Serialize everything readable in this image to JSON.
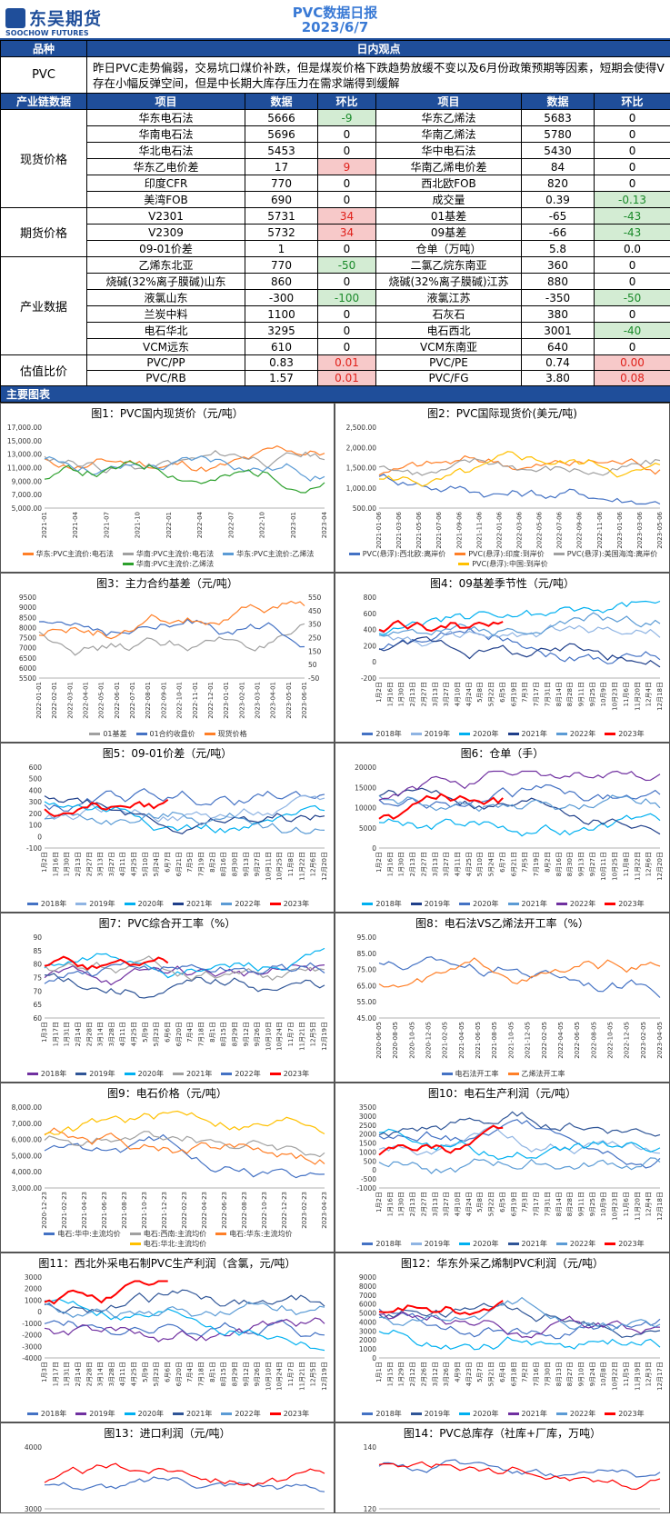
{
  "header": {
    "logo_cn": "东吴期货",
    "logo_en": "SOOCHOW FUTURES",
    "title": "PVC数据日报",
    "date": "2023/6/7"
  },
  "table": {
    "col_variety": "品种",
    "col_view": "日内观点",
    "pvc_label": "PVC",
    "view": "昨日PVC走势偏弱，交易坑口煤价补跌，但是煤炭价格下跌趋势放缓不变以及6月份政策预期等因素，短期会使得V存在小幅反弹空间，但是中长期大库存压力在需求端得到缓解",
    "chain_header": "产业链数据",
    "item_header": "项目",
    "data_header": "数据",
    "chg_header": "环比",
    "groups": [
      {
        "name": "现货价格",
        "rows": [
          [
            "华东电石法",
            "5666",
            "-9",
            "g",
            "华东乙烯法",
            "5683",
            "0",
            ""
          ],
          [
            "华南电石法",
            "5696",
            "0",
            "",
            "华南乙烯法",
            "5780",
            "0",
            ""
          ],
          [
            "华北电石法",
            "5453",
            "0",
            "",
            "华中电石法",
            "5430",
            "0",
            ""
          ],
          [
            "华东乙电价差",
            "17",
            "9",
            "r",
            "华南乙烯电价差",
            "84",
            "0",
            ""
          ],
          [
            "印度CFR",
            "770",
            "0",
            "",
            "西北欧FOB",
            "820",
            "0",
            ""
          ],
          [
            "美湾FOB",
            "690",
            "0",
            "",
            "成交量",
            "0.39",
            "-0.13",
            "g"
          ]
        ]
      },
      {
        "name": "期货价格",
        "rows": [
          [
            "V2301",
            "5731",
            "34",
            "r",
            "01基差",
            "-65",
            "-43",
            "g"
          ],
          [
            "V2309",
            "5732",
            "34",
            "r",
            "09基差",
            "-66",
            "-43",
            "g"
          ],
          [
            "09-01价差",
            "1",
            "0",
            "",
            "仓单（万吨）",
            "5.8",
            "0.0",
            ""
          ]
        ]
      },
      {
        "name": "产业数据",
        "rows": [
          [
            "乙烯东北亚",
            "770",
            "-50",
            "g",
            "二氯乙烷东南亚",
            "360",
            "0",
            ""
          ],
          [
            "烧碱(32%离子膜碱)山东",
            "860",
            "0",
            "",
            "烧碱(32%离子膜碱)江苏",
            "880",
            "0",
            ""
          ],
          [
            "液氯山东",
            "-300",
            "-100",
            "g",
            "液氯江苏",
            "-350",
            "-50",
            "g"
          ],
          [
            "兰炭中料",
            "1100",
            "0",
            "",
            "石灰石",
            "380",
            "0",
            ""
          ],
          [
            "电石华北",
            "3295",
            "0",
            "",
            "电石西北",
            "3001",
            "-40",
            "g"
          ],
          [
            "VCM远东",
            "610",
            "0",
            "",
            "VCM东南亚",
            "640",
            "0",
            ""
          ]
        ]
      },
      {
        "name": "估值比价",
        "rows": [
          [
            "PVC/PP",
            "0.83",
            "0.01",
            "r",
            "PVC/PE",
            "0.74",
            "0.00",
            "r"
          ],
          [
            "PVC/RB",
            "1.57",
            "0.01",
            "r",
            "PVC/FG",
            "3.80",
            "0.08",
            "r"
          ]
        ]
      }
    ],
    "charts_section": "主要图表"
  },
  "charts": [
    {
      "title": "图1：PVC国内现货价（元/吨）",
      "yticks": [
        "17,000.00",
        "15,000.00",
        "13,000.00",
        "11,000.00",
        "9,000.00",
        "7,000.00",
        "5,000.00"
      ],
      "xticks": [
        "2021-01",
        "2021-04",
        "2021-07",
        "2021-10",
        "2022-01",
        "2022-04",
        "2022-07",
        "2022-10",
        "2023-01",
        "2023-04"
      ],
      "legend": [
        "华东:PVC主流价:电石法",
        "华南:PVC主流价:电石法",
        "华东:PVC主流价:乙烯法",
        "华南:PVC主流价:乙烯法"
      ],
      "colors": [
        "#ff7f27",
        "#a0a0a0",
        "#5b9bd5",
        "#2ca02c"
      ]
    },
    {
      "title": "图2：PVC国际现货价(美元/吨)",
      "yticks": [
        "2,500.00",
        "2,000.00",
        "1,500.00",
        "1,000.00",
        "500.00"
      ],
      "xticks": [
        "2021-01-06",
        "2021-03-06",
        "2021-05-06",
        "2021-07-06",
        "2021-09-06",
        "2021-11-06",
        "2022-01-06",
        "2022-03-06",
        "2022-05-06",
        "2022-07-06",
        "2022-09-06",
        "2022-11-06",
        "2023-01-06",
        "2023-03-06",
        "2023-05-06"
      ],
      "legend": [
        "PVC(悬浮):西北欧:离岸价",
        "PVC(悬浮):印度:到岸价",
        "PVC(悬浮):美国海湾:离岸价",
        "PVC(悬浮):中国:到岸价"
      ],
      "colors": [
        "#4472c4",
        "#ff7f27",
        "#a0a0a0",
        "#ffc000"
      ]
    },
    {
      "title": "图3：主力合约基差（元/吨）",
      "yticks": [
        "9500",
        "9000",
        "8500",
        "8000",
        "7500",
        "7000",
        "6500",
        "6000",
        "5500"
      ],
      "y2ticks": [
        "550",
        "450",
        "350",
        "250",
        "150",
        "50",
        "-50"
      ],
      "xticks": [
        "2022-01-01",
        "2022-02-01",
        "2022-03-01",
        "2022-04-01",
        "2022-05-01",
        "2022-06-01",
        "2022-07-01",
        "2022-08-01",
        "2022-09-01",
        "2022-10-01",
        "2022-11-01",
        "2022-12-01",
        "2023-01-01",
        "2023-02-01",
        "2023-03-01",
        "2023-04-01",
        "2023-05-01",
        "2023-06-01"
      ],
      "legend": [
        "01基差",
        "01合约收盘价",
        "现货价格"
      ],
      "colors": [
        "#a0a0a0",
        "#4472c4",
        "#ff7f27"
      ]
    },
    {
      "title": "图4：09基差季节性（元/吨）",
      "yticks": [
        "800",
        "600",
        "400",
        "200",
        "0",
        "-200"
      ],
      "xticks": [
        "1月2日",
        "1月16日",
        "1月30日",
        "2月13日",
        "2月27日",
        "3月13日",
        "3月27日",
        "4月10日",
        "4月24日",
        "5月8日",
        "5月22日",
        "6月5日",
        "6月19日",
        "7月3日",
        "7月17日",
        "7月31日",
        "8月14日",
        "8月28日",
        "9月11日",
        "9月25日",
        "10月9日",
        "10月23日",
        "11月6日",
        "11月20日",
        "12月4日",
        "12月18日"
      ],
      "legend": [
        "2018年",
        "2019年",
        "2020年",
        "2021年",
        "2022年",
        "2023年"
      ],
      "colors": [
        "#4472c4",
        "#8fb4e3",
        "#00b0f0",
        "#1f3f8a",
        "#5b9bd5",
        "#ff0000"
      ]
    },
    {
      "title": "图5：09-01价差（元/吨）",
      "yticks": [
        "600",
        "500",
        "400",
        "300",
        "200",
        "100",
        "0",
        "-100"
      ],
      "xticks": [
        "1月2日",
        "1月16日",
        "1月30日",
        "2月13日",
        "2月27日",
        "3月13日",
        "3月27日",
        "4月11日",
        "4月25日",
        "5月10日",
        "5月24日",
        "6月7日",
        "6月21日",
        "7月5日",
        "7月19日",
        "8月2日",
        "8月16日",
        "8月30日",
        "9月13日",
        "9月27日",
        "10月11日",
        "10月25日",
        "11月8日",
        "11月22日",
        "12月6日",
        "12月20日"
      ],
      "legend": [
        "2018年",
        "2019年",
        "2020年",
        "2021年",
        "2022年",
        "2023年"
      ],
      "colors": [
        "#4472c4",
        "#8fb4e3",
        "#00b0f0",
        "#1f3f8a",
        "#5b9bd5",
        "#ff0000"
      ]
    },
    {
      "title": "图6：仓单（手）",
      "yticks": [
        "20000",
        "15000",
        "10000",
        "5000",
        "0"
      ],
      "xticks": [
        "1月2日",
        "1月16日",
        "1月30日",
        "2月13日",
        "2月27日",
        "3月13日",
        "3月27日",
        "4月11日",
        "4月25日",
        "5月10日",
        "5月24日",
        "6月7日",
        "6月21日",
        "7月5日",
        "7月19日",
        "8月2日",
        "8月16日",
        "8月30日",
        "9月13日",
        "9月27日",
        "10月11日",
        "10月25日",
        "11月8日",
        "11月22日",
        "12月6日",
        "12月20日"
      ],
      "legend": [
        "2018年",
        "2019年",
        "2020年",
        "2021年",
        "2022年",
        "2023年"
      ],
      "colors": [
        "#00b0f0",
        "#1f3f8a",
        "#4472c4",
        "#5b9bd5",
        "#7030a0",
        "#ff0000"
      ]
    },
    {
      "title": "图7：PVC综合开工率（%）",
      "yticks": [
        "90",
        "85",
        "80",
        "75",
        "70",
        "65",
        "60"
      ],
      "xticks": [
        "1月3日",
        "1月17日",
        "1月31日",
        "2月14日",
        "2月28日",
        "3月14日",
        "3月28日",
        "4月11日",
        "4月25日",
        "5月9日",
        "5月23日",
        "6月6日",
        "6月20日",
        "7月4日",
        "7月18日",
        "8月1日",
        "8月15日",
        "8月29日",
        "9月12日",
        "9月26日",
        "10月10日",
        "10月24日",
        "11月7日",
        "11月21日",
        "12月5日",
        "12月19日"
      ],
      "legend": [
        "2018年",
        "2019年",
        "2020年",
        "2021年",
        "2022年",
        "2023年"
      ],
      "colors": [
        "#7030a0",
        "#2f5597",
        "#00b0f0",
        "#a0a0a0",
        "#4472c4",
        "#ff0000"
      ]
    },
    {
      "title": "图8：电石法VS乙烯法开工率（%）",
      "yticks": [
        "95.00",
        "85.00",
        "75.00",
        "65.00",
        "55.00",
        "45.00"
      ],
      "xticks": [
        "2020-06-05",
        "2020-08-05",
        "2020-10-05",
        "2020-12-05",
        "2021-02-05",
        "2021-04-05",
        "2021-06-05",
        "2021-08-05",
        "2021-10-05",
        "2021-12-05",
        "2022-02-05",
        "2022-04-05",
        "2022-06-05",
        "2022-08-05",
        "2022-10-05",
        "2022-12-05",
        "2023-02-05",
        "2023-04-05"
      ],
      "legend": [
        "电石法开工率",
        "乙烯法开工率"
      ],
      "colors": [
        "#4472c4",
        "#ff7f27"
      ]
    },
    {
      "title": "图9：电石价格（元/吨）",
      "yticks": [
        "8,000.00",
        "7,000.00",
        "6,000.00",
        "5,000.00",
        "4,000.00",
        "3,000.00"
      ],
      "xticks": [
        "2020-12-23",
        "2021-02-23",
        "2021-04-23",
        "2021-06-23",
        "2021-08-23",
        "2021-10-23",
        "2021-12-23",
        "2022-02-23",
        "2022-04-23",
        "2022-06-23",
        "2022-08-23",
        "2022-10-23",
        "2022-12-23",
        "2023-02-23",
        "2023-04-23"
      ],
      "legend": [
        "电石:华中:主流均价",
        "电石:西南:主流均价",
        "电石:华东:主流均价",
        "电石:华北:主流均价"
      ],
      "colors": [
        "#4472c4",
        "#a0a0a0",
        "#ff7f27",
        "#ffc000"
      ]
    },
    {
      "title": "图10：电石生产利润（元/吨）",
      "yticks": [
        "3500",
        "3000",
        "2500",
        "2000",
        "1500",
        "1000",
        "500",
        "0",
        "-500",
        "-1000"
      ],
      "xticks": [
        "1月2日",
        "1月16日",
        "1月30日",
        "2月13日",
        "2月27日",
        "3月13日",
        "3月27日",
        "4月10日",
        "4月24日",
        "5月8日",
        "5月22日",
        "6月5日",
        "6月19日",
        "7月3日",
        "7月17日",
        "7月31日",
        "8月14日",
        "8月28日",
        "9月11日",
        "9月25日",
        "10月9日",
        "10月23日",
        "11月6日",
        "11月20日",
        "12月4日",
        "12月18日"
      ],
      "legend": [
        "2018年",
        "2019年",
        "2020年",
        "2021年",
        "2022年",
        "2023年"
      ],
      "colors": [
        "#4472c4",
        "#8fb4e3",
        "#00b0f0",
        "#2f5597",
        "#5b9bd5",
        "#ff0000"
      ]
    },
    {
      "title": "图11：西北外采电石制PVC生产利润（含氯，元/吨）",
      "yticks": [
        "3000",
        "2000",
        "1000",
        "0",
        "-1000",
        "-2000",
        "-3000",
        "-4000"
      ],
      "xticks": [
        "1月3日",
        "1月17日",
        "1月31日",
        "2月14日",
        "2月28日",
        "3月14日",
        "3月28日",
        "4月11日",
        "4月25日",
        "5月9日",
        "5月23日",
        "6月6日",
        "6月20日",
        "7月4日",
        "7月18日",
        "8月1日",
        "8月15日",
        "8月29日",
        "9月12日",
        "9月26日",
        "10月10日",
        "10月24日",
        "11月7日",
        "11月21日",
        "12月5日",
        "12月19日"
      ],
      "legend": [
        "2018年",
        "2019年",
        "2020年",
        "2021年",
        "2022年",
        "2023年"
      ],
      "colors": [
        "#4472c4",
        "#7030a0",
        "#00b0f0",
        "#2f5597",
        "#5b9bd5",
        "#ff0000"
      ]
    },
    {
      "title": "图12：华东外采乙烯制PVC利润（元/吨）",
      "yticks": [
        "9000",
        "8000",
        "7000",
        "6000",
        "5000",
        "4000",
        "3000",
        "2000",
        "1000",
        "0"
      ],
      "xticks": [
        "1月1日",
        "1月15日",
        "1月29日",
        "2月12日",
        "2月26日",
        "3月12日",
        "3月26日",
        "4月9日",
        "4月23日",
        "5月7日",
        "5月21日",
        "6月4日",
        "6月18日",
        "7月2日",
        "7月16日",
        "7月30日",
        "8月13日",
        "8月27日",
        "9月10日",
        "9月24日",
        "10月8日",
        "10月22日",
        "11月5日",
        "11月19日",
        "12月3日",
        "12月17日"
      ],
      "legend": [
        "2018年",
        "2019年",
        "2020年",
        "2021年",
        "2022年",
        "2023年"
      ],
      "colors": [
        "#4472c4",
        "#2f5597",
        "#00b0f0",
        "#7030a0",
        "#5b9bd5",
        "#ff0000"
      ]
    },
    {
      "title": "图13：进口利润（元/吨）",
      "yticks": [
        "4000",
        "3000"
      ],
      "xticks": [],
      "legend": [],
      "colors": [
        "#4472c4",
        "#ff0000"
      ]
    },
    {
      "title": "图14：PVC总库存（社库+厂库，万吨）",
      "yticks": [
        "140",
        "120"
      ],
      "xticks": [],
      "legend": [],
      "colors": [
        "#4472c4",
        "#ff0000"
      ]
    }
  ]
}
